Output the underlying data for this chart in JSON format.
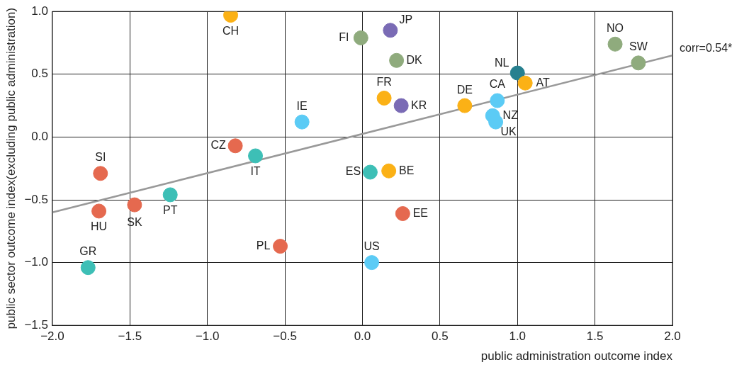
{
  "chart_data": {
    "type": "scatter",
    "xlabel": "public administration outcome index",
    "ylabel": "public sector outcome index(excluding public administration)",
    "xlim": [
      -2,
      2
    ],
    "ylim": [
      -1.5,
      1
    ],
    "xticks": [
      {
        "value": -2,
        "label": "−2.0"
      },
      {
        "value": -1.5,
        "label": "−1.5"
      },
      {
        "value": -1,
        "label": "−1.0"
      },
      {
        "value": -0.5,
        "label": "−0.5"
      },
      {
        "value": 0,
        "label": "0.0"
      },
      0.5,
      {
        "value": 1,
        "label": "1.0"
      },
      1.5,
      {
        "value": 2,
        "label": "2.0"
      }
    ],
    "yticks": [
      {
        "value": -1.5,
        "label": "−1.5"
      },
      {
        "value": -1,
        "label": "−1.0"
      },
      {
        "value": -0.5,
        "label": "−0.5"
      },
      {
        "value": 0,
        "label": "0.0"
      },
      0.5,
      {
        "value": 1,
        "label": "1.0"
      }
    ],
    "grid": true,
    "legend": false,
    "marker": "circle",
    "series": [
      {
        "type": "line",
        "color": "#999999",
        "x": [
          -2,
          2
        ],
        "values": [
          -0.6,
          0.65
        ],
        "marker": "none"
      },
      {
        "color": "#fbb116",
        "x": [
          -0.85,
          0.14,
          0.66,
          1.05,
          0.17
        ],
        "values": [
          0.97,
          0.31,
          0.25,
          0.43,
          -0.27
        ]
      },
      {
        "color": "#8fab7d",
        "x": [
          -0.01,
          0.22,
          1.63,
          1.78
        ],
        "values": [
          0.79,
          0.61,
          0.74,
          0.59
        ]
      },
      {
        "color": "#7a6bb5",
        "x": [
          0.18,
          0.25
        ],
        "values": [
          0.85,
          0.25
        ]
      },
      {
        "color": "#27808f",
        "x": [
          1.0
        ],
        "values": [
          0.51
        ]
      },
      {
        "color": "#5bcbf5",
        "x": [
          0.87,
          0.84,
          0.86,
          -0.39,
          0.06
        ],
        "values": [
          0.29,
          0.17,
          0.12,
          0.12,
          -1.0
        ]
      },
      {
        "color": "#e5694f",
        "x": [
          -1.69,
          -1.7,
          -1.47,
          -0.82,
          -0.53,
          0.26
        ],
        "values": [
          -0.29,
          -0.59,
          -0.54,
          -0.07,
          -0.87,
          -0.61
        ]
      },
      {
        "color": "#3dbfb6",
        "x": [
          -0.69,
          0.05,
          -1.24,
          -1.77
        ],
        "values": [
          -0.15,
          -0.28,
          -0.46,
          -1.04
        ]
      }
    ],
    "annotations": [
      {
        "text": "CH",
        "x": -0.85,
        "y": 0.97
      },
      {
        "text": "FI",
        "x": -0.01,
        "y": 0.79
      },
      {
        "text": "JP",
        "x": 0.18,
        "y": 0.85
      },
      {
        "text": "DK",
        "x": 0.22,
        "y": 0.61
      },
      {
        "text": "NO",
        "x": 1.63,
        "y": 0.74
      },
      {
        "text": "SW",
        "x": 1.78,
        "y": 0.59
      },
      {
        "text": "NL",
        "x": 1.0,
        "y": 0.51
      },
      {
        "text": "AT",
        "x": 1.05,
        "y": 0.43
      },
      {
        "text": "CA",
        "x": 0.87,
        "y": 0.29
      },
      {
        "text": "NZ",
        "x": 0.84,
        "y": 0.17
      },
      {
        "text": "UK",
        "x": 0.86,
        "y": 0.12
      },
      {
        "text": "DE",
        "x": 0.66,
        "y": 0.25
      },
      {
        "text": "FR",
        "x": 0.14,
        "y": 0.31
      },
      {
        "text": "KR",
        "x": 0.25,
        "y": 0.25
      },
      {
        "text": "IE",
        "x": -0.39,
        "y": 0.12
      },
      {
        "text": "CZ",
        "x": -0.82,
        "y": -0.07
      },
      {
        "text": "IT",
        "x": -0.69,
        "y": -0.15
      },
      {
        "text": "SI",
        "x": -1.69,
        "y": -0.29
      },
      {
        "text": "ES",
        "x": 0.05,
        "y": -0.28
      },
      {
        "text": "BE",
        "x": 0.17,
        "y": -0.27
      },
      {
        "text": "PT",
        "x": -1.24,
        "y": -0.46
      },
      {
        "text": "HU",
        "x": -1.7,
        "y": -0.59
      },
      {
        "text": "SK",
        "x": -1.47,
        "y": -0.54
      },
      {
        "text": "EE",
        "x": 0.26,
        "y": -0.61
      },
      {
        "text": "PL",
        "x": -0.53,
        "y": -0.87
      },
      {
        "text": "US",
        "x": 0.06,
        "y": -1.0
      },
      {
        "text": "GR",
        "x": -1.77,
        "y": -1.04
      },
      {
        "text": "corr=0.54*",
        "x": 2,
        "y": 0.65
      }
    ]
  }
}
